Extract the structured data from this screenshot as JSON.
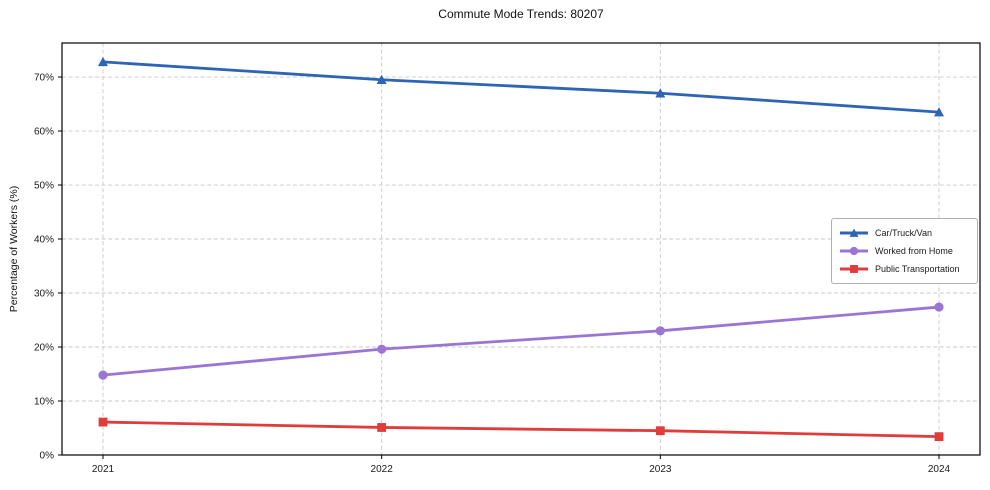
{
  "chart_data": {
    "type": "line",
    "title": "Commute Mode Trends: 80207",
    "xlabel": "",
    "ylabel": "Percentage of Workers (%)",
    "categories": [
      "2021",
      "2022",
      "2023",
      "2024"
    ],
    "series": [
      {
        "name": "Car/Truck/Van",
        "color": "#2d64b5",
        "marker": "triangle",
        "values": [
          72.8,
          69.5,
          67.0,
          63.5
        ]
      },
      {
        "name": "Worked from Home",
        "color": "#9b75d4",
        "marker": "circle",
        "values": [
          14.8,
          19.6,
          23.0,
          27.4
        ]
      },
      {
        "name": "Public Transportation",
        "color": "#e03c3c",
        "marker": "square",
        "values": [
          6.1,
          5.1,
          4.5,
          3.4
        ]
      }
    ],
    "ylim": [
      0,
      76.3
    ],
    "yticks": [
      0,
      10,
      20,
      30,
      40,
      50,
      60,
      70
    ],
    "ytick_suffix": "%",
    "grid": true,
    "legend_position": "center right"
  }
}
